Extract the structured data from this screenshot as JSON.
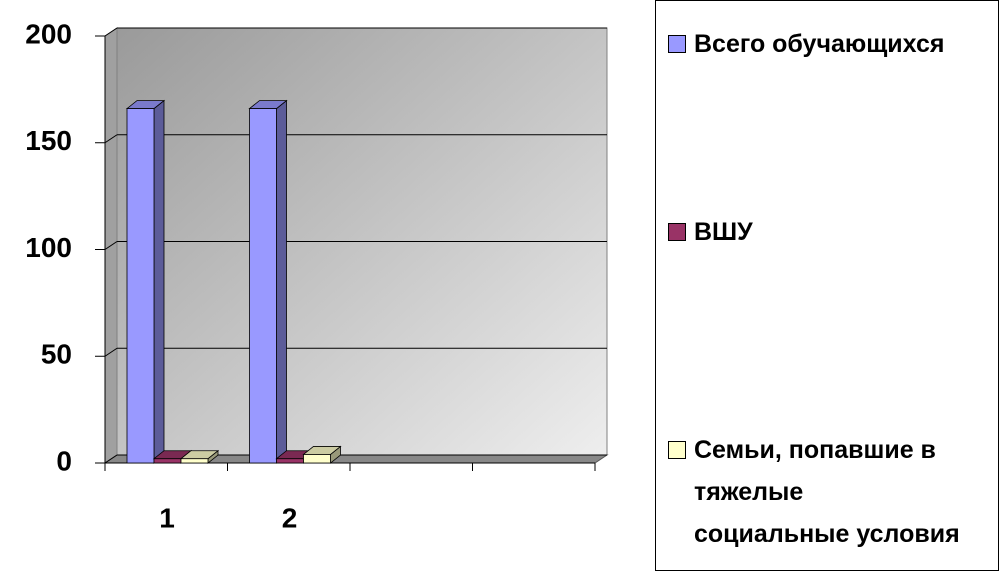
{
  "chart_data": {
    "type": "bar",
    "categories": [
      "1",
      "2",
      null,
      null
    ],
    "series": [
      {
        "name": "Всего обучающихся",
        "color": "#9999ff",
        "values": [
          166,
          166,
          null,
          null
        ]
      },
      {
        "name": "ВШУ",
        "color": "#993366",
        "values": [
          2,
          2,
          null,
          null
        ]
      },
      {
        "name": "Семьи, попавшие в тяжелые социальные условия",
        "color": "#ffffcc",
        "values": [
          2,
          4,
          null,
          null
        ]
      }
    ],
    "ylim": [
      0,
      200
    ],
    "yticks": [
      0,
      50,
      100,
      150,
      200
    ],
    "grid": true
  }
}
